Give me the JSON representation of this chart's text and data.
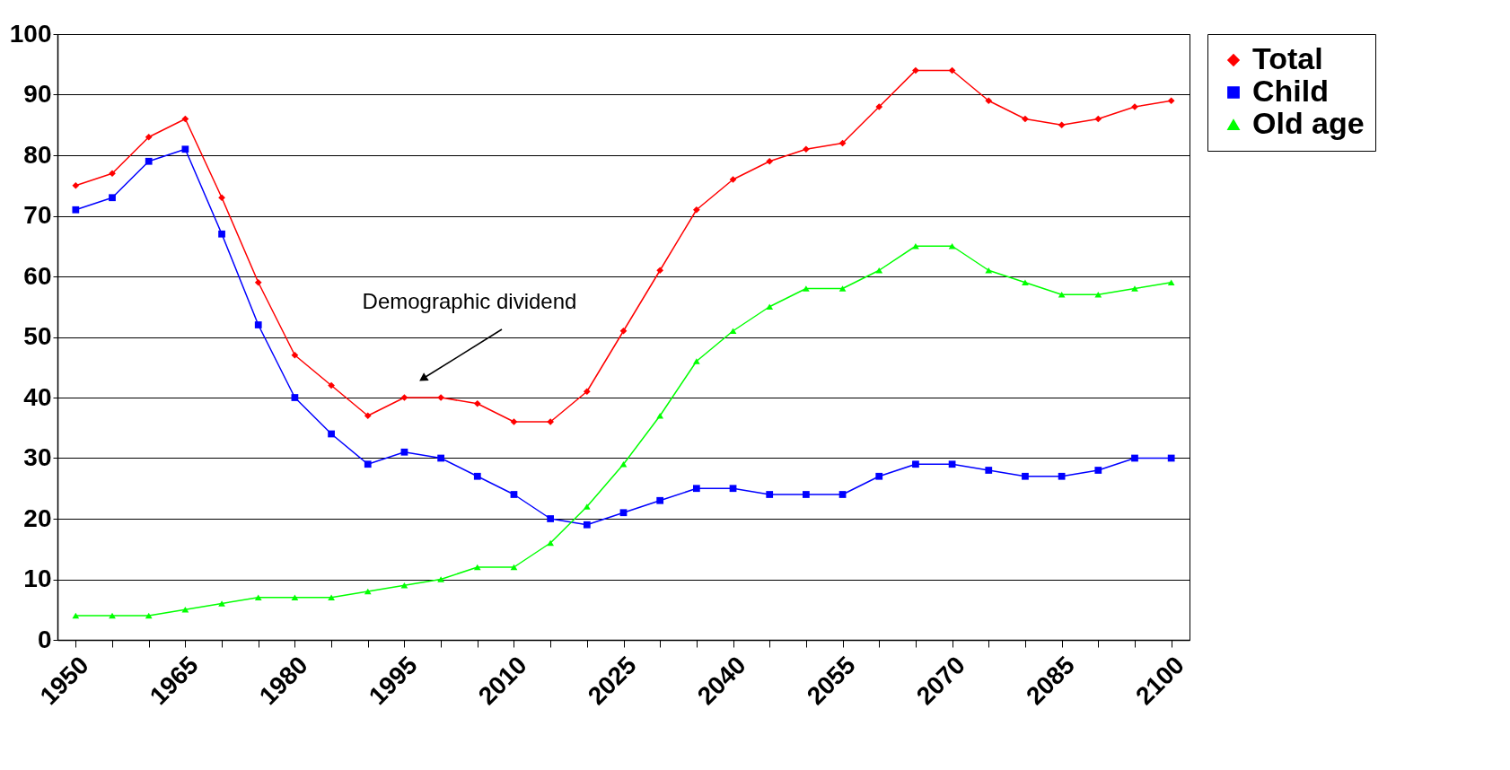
{
  "chart_data": {
    "type": "line",
    "categories": [
      "1950",
      null,
      null,
      "1965",
      null,
      null,
      "1980",
      null,
      null,
      "1995",
      null,
      null,
      "2010",
      null,
      null,
      "2025",
      null,
      null,
      "2040",
      null,
      null,
      "2055",
      null,
      null,
      "2070",
      null,
      null,
      "2085",
      null,
      null,
      "2100"
    ],
    "series": [
      {
        "name": "Total",
        "color": "#ff0000",
        "marker": "diamond",
        "values": [
          75,
          77,
          83,
          86,
          73,
          59,
          47,
          42,
          37,
          40,
          40,
          39,
          36,
          36,
          41,
          51,
          61,
          71,
          76,
          79,
          81,
          82,
          88,
          94,
          94,
          89,
          86,
          85,
          86,
          88,
          89
        ]
      },
      {
        "name": "Child",
        "color": "#0000ff",
        "marker": "square",
        "values": [
          71,
          73,
          79,
          81,
          67,
          52,
          40,
          34,
          29,
          31,
          30,
          27,
          24,
          20,
          19,
          21,
          23,
          25,
          25,
          24,
          24,
          24,
          27,
          29,
          29,
          28,
          27,
          27,
          28,
          30,
          30
        ]
      },
      {
        "name": "Old age",
        "color": "#00ff00",
        "marker": "triangle",
        "values": [
          4,
          4,
          4,
          5,
          6,
          7,
          7,
          7,
          8,
          9,
          10,
          12,
          12,
          16,
          22,
          29,
          37,
          46,
          51,
          55,
          58,
          58,
          61,
          65,
          65,
          61,
          59,
          57,
          57,
          58,
          59
        ]
      }
    ],
    "ylim": [
      0,
      100
    ],
    "yticks": [
      0,
      10,
      20,
      30,
      40,
      50,
      60,
      70,
      80,
      90,
      100
    ],
    "grid": "y",
    "legend": "right",
    "annotations": [
      "Demographic dividend"
    ]
  }
}
